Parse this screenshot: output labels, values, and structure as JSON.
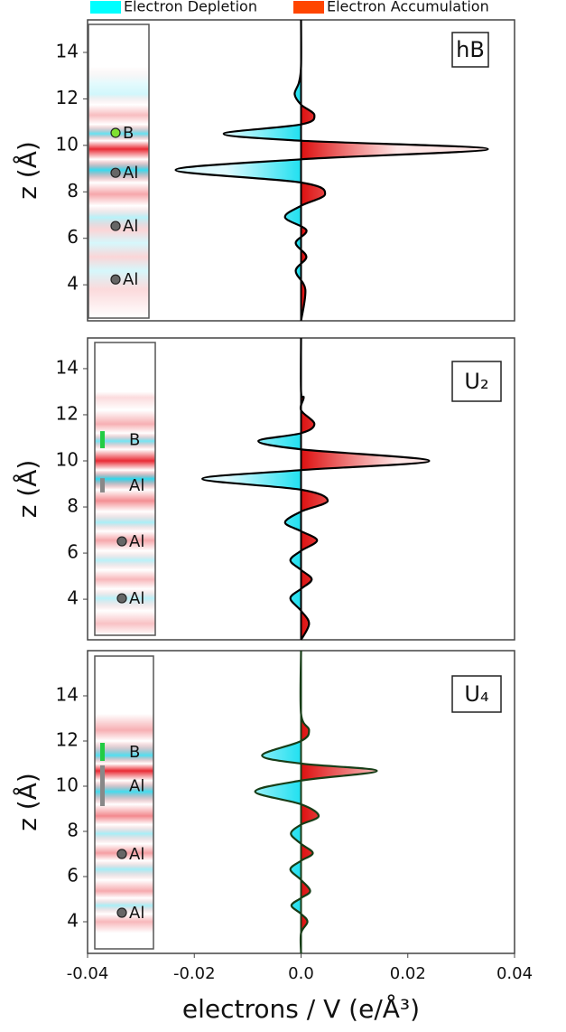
{
  "chart_data": [
    {
      "type": "line",
      "panel_label": "hB",
      "ylabel": "z (Å)",
      "fill_legend": [
        {
          "name": "Electron Depletion",
          "color": "#00ffff"
        },
        {
          "name": "Electron Accumulation",
          "color": "#ff4500"
        }
      ],
      "xlim": [
        -0.04,
        0.04
      ],
      "ylim": [
        2.45,
        15.4
      ],
      "yticks": [
        4,
        6,
        8,
        10,
        12,
        14
      ],
      "series": [
        {
          "color": "#000000",
          "z": [
            15.4,
            13.4,
            12.7,
            12.2,
            11.75,
            11.3,
            10.9,
            10.5,
            10.2,
            9.84,
            9.4,
            8.94,
            8.4,
            7.9,
            7.4,
            6.9,
            6.35,
            5.8,
            5.2,
            4.6,
            3.8,
            2.45
          ],
          "values": [
            0,
            0,
            -0.0004,
            -0.0012,
            0,
            0.0025,
            0,
            -0.0145,
            0,
            0.035,
            0,
            -0.0235,
            0,
            0.0045,
            0,
            -0.003,
            0.001,
            -0.001,
            0.001,
            -0.001,
            0.0008,
            0
          ]
        }
      ],
      "atoms": [
        {
          "label": "B",
          "z": 10.54,
          "color": "#7fe030"
        },
        {
          "label": "Al",
          "z": 8.82,
          "color": "#666666"
        },
        {
          "label": "Al",
          "z": 6.53,
          "color": "#666666"
        },
        {
          "label": "Al",
          "z": 4.23,
          "color": "#666666"
        }
      ]
    },
    {
      "type": "line",
      "panel_label": "U₂",
      "ylabel": "z (Å)",
      "xlim": [
        -0.04,
        0.04
      ],
      "ylim": [
        2.24,
        15.33
      ],
      "yticks": [
        4,
        6,
        8,
        10,
        12,
        14
      ],
      "series": [
        {
          "color": "#000000",
          "z": [
            15.33,
            13.0,
            12.75,
            12.2,
            11.6,
            11.2,
            10.86,
            10.5,
            10.0,
            9.6,
            9.22,
            8.75,
            8.27,
            7.8,
            7.33,
            6.95,
            6.55,
            6.1,
            5.69,
            5.27,
            4.86,
            4.45,
            4.04,
            3.5,
            2.94,
            2.24
          ],
          "values": [
            0,
            0,
            0.0005,
            0,
            0.0025,
            0,
            -0.008,
            0,
            0.024,
            0,
            -0.0185,
            0,
            0.005,
            0,
            -0.003,
            0,
            0.003,
            0,
            -0.002,
            0,
            0.002,
            0,
            -0.002,
            0,
            0.0015,
            0
          ]
        }
      ],
      "atoms": [
        {
          "label": "B",
          "z_range": [
            11.29,
            10.55
          ],
          "color": "#22cc44"
        },
        {
          "label": "Al",
          "z_range": [
            9.25,
            8.63
          ],
          "color": "#888888"
        },
        {
          "label": "Al",
          "z": 6.51,
          "color": "#666666"
        },
        {
          "label": "Al",
          "z": 4.04,
          "color": "#666666"
        }
      ]
    },
    {
      "type": "line",
      "panel_label": "U₄",
      "ylabel": "z (Å)",
      "xlabel": "electrons / V (e/Å³)",
      "xlim": [
        -0.04,
        0.04
      ],
      "xticks": [
        -0.04,
        -0.02,
        {
          "value": 0,
          "label": "0.0"
        },
        0.02,
        0.04
      ],
      "ylim": [
        2.6,
        16.0
      ],
      "yticks": [
        4,
        6,
        8,
        10,
        12,
        14
      ],
      "series": [
        {
          "color": "#173d17",
          "z": [
            16.0,
            13.2,
            12.48,
            12.0,
            11.36,
            11.0,
            10.68,
            10.25,
            9.76,
            9.2,
            8.68,
            8.3,
            7.9,
            7.45,
            7.04,
            6.7,
            6.32,
            5.85,
            5.36,
            5.05,
            4.72,
            4.35,
            4.0,
            3.5,
            2.6
          ],
          "values": [
            0,
            0,
            0.0015,
            0,
            -0.0073,
            0,
            0.0142,
            0,
            -0.0086,
            0,
            0.0033,
            0,
            -0.0019,
            0,
            0.0022,
            0,
            -0.002,
            0,
            0.0017,
            0,
            -0.0018,
            0,
            0.0012,
            0,
            0
          ]
        }
      ],
      "atoms": [
        {
          "label": "B",
          "z_range": [
            11.92,
            11.12
          ],
          "color": "#22cc44"
        },
        {
          "label": "Al",
          "z_range": [
            10.92,
            9.12
          ],
          "color": "#888888"
        },
        {
          "label": "Al",
          "z": 7.0,
          "color": "#666666"
        },
        {
          "label": "Al",
          "z": 4.4,
          "color": "#666666"
        }
      ]
    }
  ]
}
